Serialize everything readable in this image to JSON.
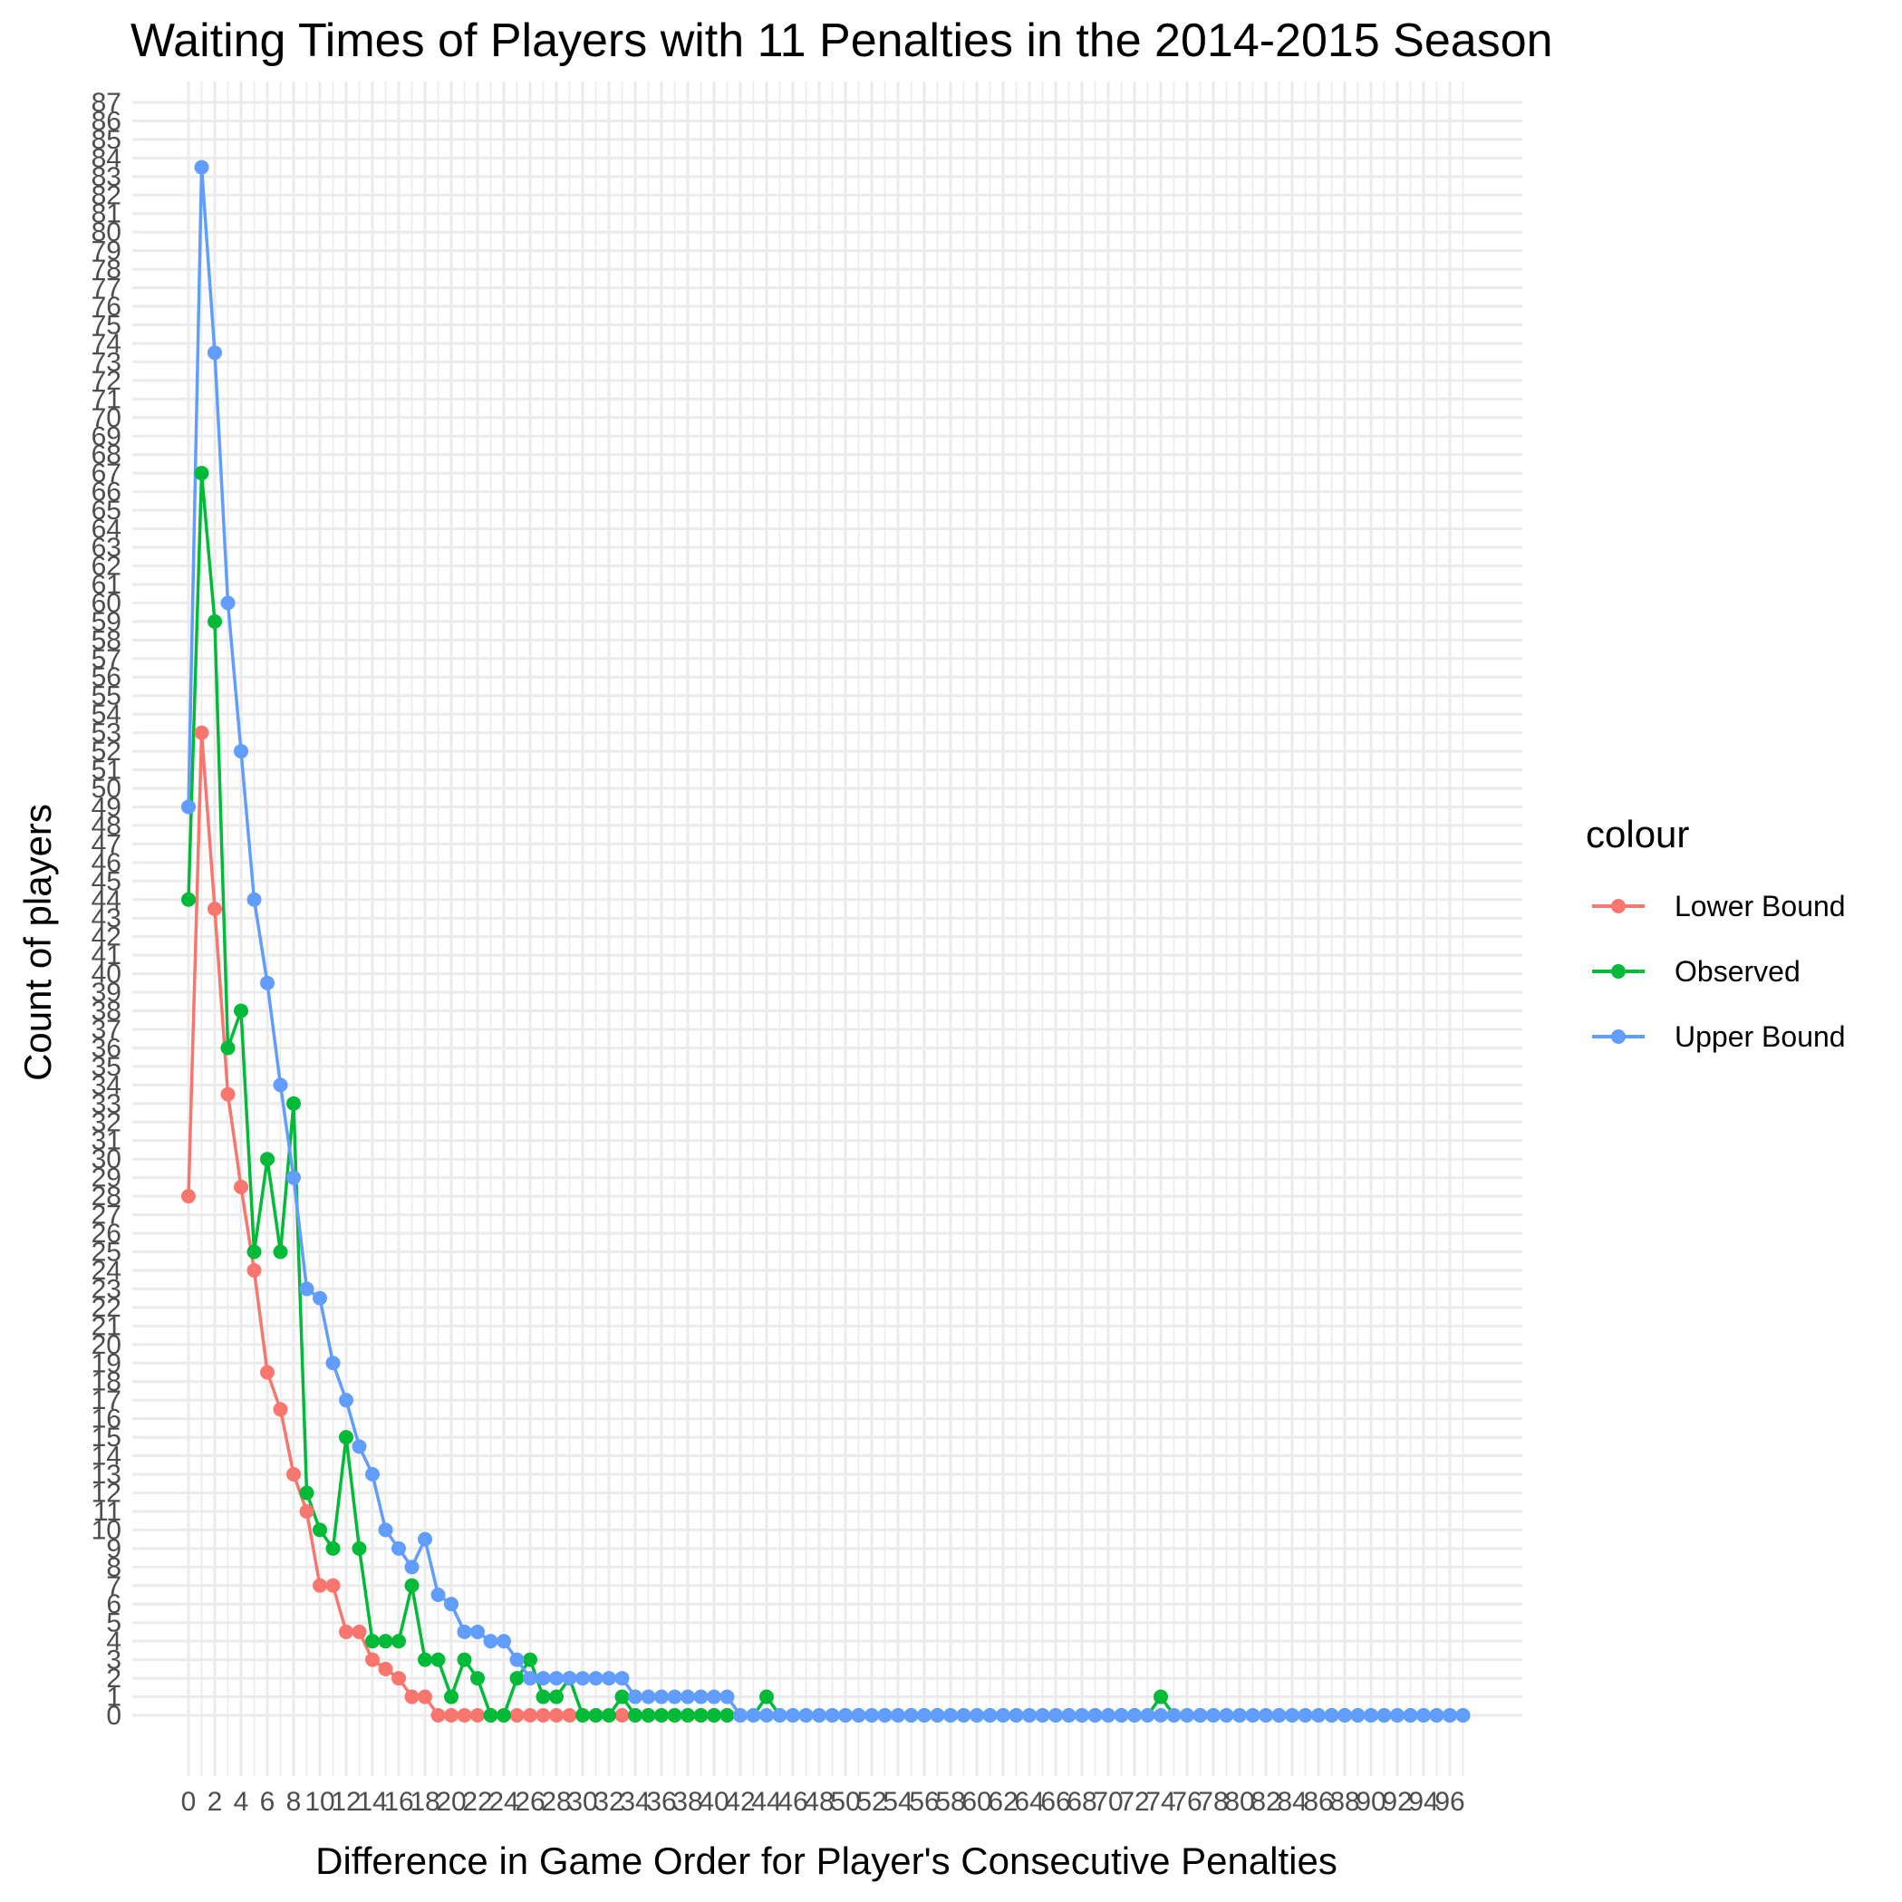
{
  "chart_data": {
    "type": "line",
    "title": "Waiting Times of Players with 11 Penalties in the 2014-2015 Season",
    "xlabel": "Difference in Game Order for Player's Consecutive Penalties",
    "ylabel": "Count of players",
    "xlim": [
      0,
      97
    ],
    "ylim": [
      0,
      87
    ],
    "x_ticks": [
      0,
      2,
      4,
      6,
      8,
      10,
      12,
      14,
      16,
      18,
      20,
      22,
      24,
      26,
      28,
      30,
      32,
      34,
      36,
      38,
      40,
      42,
      44,
      46,
      48,
      50,
      52,
      54,
      56,
      58,
      60,
      62,
      64,
      66,
      68,
      70,
      72,
      74,
      76,
      78,
      80,
      82,
      84,
      86,
      88,
      90,
      92,
      94,
      96
    ],
    "y_ticks": [
      0,
      1,
      2,
      3,
      4,
      5,
      6,
      7,
      8,
      9,
      10,
      11,
      12,
      13,
      14,
      15,
      16,
      17,
      18,
      19,
      20,
      21,
      22,
      23,
      24,
      25,
      26,
      27,
      28,
      29,
      30,
      31,
      32,
      33,
      34,
      35,
      36,
      37,
      38,
      39,
      40,
      41,
      42,
      43,
      44,
      45,
      46,
      47,
      48,
      49,
      50,
      51,
      52,
      53,
      54,
      55,
      56,
      57,
      58,
      59,
      60,
      61,
      62,
      63,
      64,
      65,
      66,
      67,
      68,
      69,
      70,
      71,
      72,
      73,
      74,
      75,
      76,
      77,
      78,
      79,
      80,
      81,
      82,
      83,
      84,
      85,
      86,
      87
    ],
    "grid": true,
    "legend": {
      "title": "colour",
      "position": "right"
    },
    "series": [
      {
        "name": "Lower Bound",
        "color": "#F8766D",
        "x": [
          0,
          1,
          2,
          3,
          4,
          5,
          6,
          7,
          8,
          9,
          10,
          11,
          12,
          13,
          14,
          15,
          16,
          17,
          18,
          19,
          20,
          21,
          22,
          23,
          24,
          25,
          26,
          27,
          28,
          29,
          30,
          31,
          32,
          33,
          34,
          35,
          36,
          37,
          38,
          39,
          40,
          41
        ],
        "values": [
          28,
          53,
          43.5,
          33.5,
          28.5,
          24,
          18.5,
          16.5,
          13,
          11,
          7,
          7,
          4.5,
          4.5,
          3,
          2.5,
          2,
          1,
          1,
          0,
          0,
          0,
          0,
          0,
          0,
          0,
          0,
          0,
          0,
          0,
          0,
          0,
          0,
          0,
          0,
          0,
          0,
          0,
          0,
          0,
          0,
          0
        ]
      },
      {
        "name": "Observed",
        "color": "#00BA38",
        "x": [
          0,
          1,
          2,
          3,
          4,
          5,
          6,
          7,
          8,
          9,
          10,
          11,
          12,
          13,
          14,
          15,
          16,
          17,
          18,
          19,
          20,
          21,
          22,
          23,
          24,
          25,
          26,
          27,
          28,
          29,
          30,
          31,
          32,
          33,
          34,
          35,
          36,
          37,
          38,
          39,
          40,
          41,
          42,
          43,
          44,
          45,
          46,
          47,
          48,
          49,
          50,
          51,
          52,
          53,
          54,
          55,
          56,
          57,
          58,
          59,
          60,
          61,
          62,
          63,
          64,
          65,
          66,
          67,
          68,
          69,
          70,
          71,
          72,
          73,
          74,
          75,
          76,
          77,
          78,
          79,
          80,
          81,
          82,
          83,
          84,
          85,
          86,
          87,
          88,
          89,
          90,
          91,
          92,
          93,
          94,
          95,
          96,
          97
        ],
        "values": [
          44,
          67,
          59,
          36,
          38,
          25,
          30,
          25,
          33,
          12,
          10,
          9,
          15,
          9,
          4,
          4,
          4,
          7,
          3,
          3,
          1,
          3,
          2,
          0,
          0,
          2,
          3,
          1,
          1,
          2,
          0,
          0,
          0,
          1,
          0,
          0,
          0,
          0,
          0,
          0,
          0,
          0,
          0,
          0,
          1,
          0,
          0,
          0,
          0,
          0,
          0,
          0,
          0,
          0,
          0,
          0,
          0,
          0,
          0,
          0,
          0,
          0,
          0,
          0,
          0,
          0,
          0,
          0,
          0,
          0,
          0,
          0,
          0,
          0,
          1,
          0,
          0,
          0,
          0,
          0,
          0,
          0,
          0,
          0,
          0,
          0,
          0,
          0,
          0,
          0,
          0,
          0,
          0,
          0,
          0,
          0,
          0,
          0
        ]
      },
      {
        "name": "Upper Bound",
        "color": "#619CFF",
        "x": [
          0,
          1,
          2,
          3,
          4,
          5,
          6,
          7,
          8,
          9,
          10,
          11,
          12,
          13,
          14,
          15,
          16,
          17,
          18,
          19,
          20,
          21,
          22,
          23,
          24,
          25,
          26,
          27,
          28,
          29,
          30,
          31,
          32,
          33,
          34,
          35,
          36,
          37,
          38,
          39,
          40,
          41,
          42,
          43,
          44,
          45,
          46,
          47,
          48,
          49,
          50,
          51,
          52,
          53,
          54,
          55,
          56,
          57,
          58,
          59,
          60,
          61,
          62,
          63,
          64,
          65,
          66,
          67,
          68,
          69,
          70,
          71,
          72,
          73,
          74,
          75,
          76,
          77,
          78,
          79,
          80,
          81,
          82,
          83,
          84,
          85,
          86,
          87,
          88,
          89,
          90,
          91,
          92,
          93,
          94,
          95,
          96,
          97
        ],
        "values": [
          49,
          83.5,
          73.5,
          60,
          52,
          44,
          39.5,
          34,
          29,
          23,
          22.5,
          19,
          17,
          14.5,
          13,
          10,
          9,
          8,
          9.5,
          6.5,
          6,
          4.5,
          4.5,
          4,
          4,
          3,
          2,
          2,
          2,
          2,
          2,
          2,
          2,
          2,
          1,
          1,
          1,
          1,
          1,
          1,
          1,
          1,
          0,
          0,
          0,
          0,
          0,
          0,
          0,
          0,
          0,
          0,
          0,
          0,
          0,
          0,
          0,
          0,
          0,
          0,
          0,
          0,
          0,
          0,
          0,
          0,
          0,
          0,
          0,
          0,
          0,
          0,
          0,
          0,
          0,
          0,
          0,
          0,
          0,
          0,
          0,
          0,
          0,
          0,
          0,
          0,
          0,
          0,
          0,
          0,
          0,
          0,
          0,
          0,
          0,
          0,
          0,
          0
        ]
      }
    ]
  }
}
